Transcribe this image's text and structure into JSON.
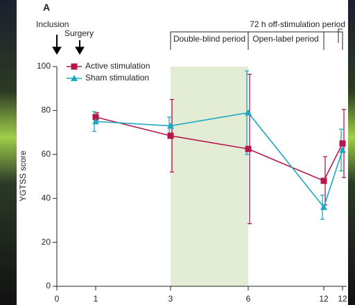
{
  "chart_data": {
    "type": "line",
    "panel_label": "A",
    "y_label": "YGTSS score",
    "categories": [
      "0",
      "1",
      "3",
      "6",
      "12",
      "12"
    ],
    "ylim": [
      0,
      100
    ],
    "yticks": [
      0,
      20,
      40,
      60,
      80,
      100
    ],
    "annotations": {
      "inclusion": "Inclusion",
      "surgery": "Surgery",
      "double_blind": "Double-blind period",
      "open_label": "Open-label period",
      "off_stim": "72 h off-stimulation period"
    },
    "shaded_color": "#e3edd5",
    "series": [
      {
        "name": "Active stimulation",
        "color": "#b5174a",
        "marker": "square",
        "values": [
          null,
          77,
          68.5,
          62.5,
          48,
          65
        ],
        "errors": [
          null,
          2,
          16.5,
          34,
          11,
          15.5
        ]
      },
      {
        "name": "Sham stimulation",
        "color": "#1aa7c4",
        "marker": "triangle",
        "values": [
          null,
          75,
          73,
          79,
          36,
          62
        ],
        "errors": [
          null,
          4.5,
          4,
          19,
          5.5,
          9.5
        ]
      }
    ]
  }
}
